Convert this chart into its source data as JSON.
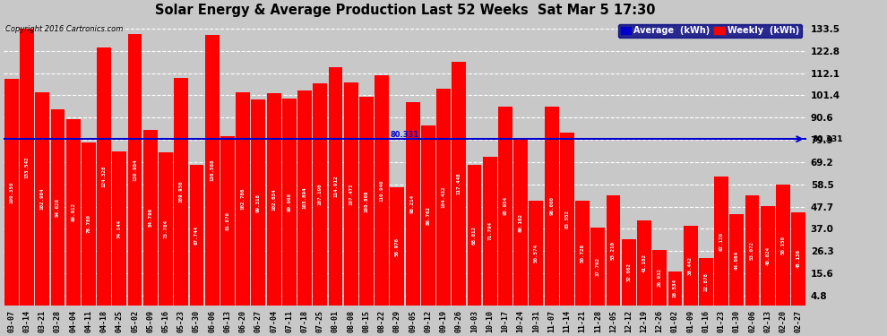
{
  "title": "Solar Energy & Average Production Last 52 Weeks  Sat Mar 5 17:30",
  "copyright": "Copyright 2016 Cartronics.com",
  "average_value": 80.331,
  "bar_color": "#ff0000",
  "average_line_color": "#0000cc",
  "background_color": "#c8c8c8",
  "plot_bg_color": "#c8c8c8",
  "grid_color": "#ffffff",
  "ytick_vals": [
    133.5,
    122.8,
    112.1,
    101.4,
    90.6,
    79.9,
    69.2,
    58.5,
    47.7,
    37.0,
    26.3,
    15.6,
    4.8
  ],
  "ymax": 138.0,
  "ymin": 0.0,
  "legend_avg_color": "#0000cc",
  "legend_weekly_color": "#ff0000",
  "categories": [
    "03-07",
    "03-14",
    "03-21",
    "03-28",
    "04-04",
    "04-11",
    "04-18",
    "04-25",
    "05-02",
    "05-09",
    "05-16",
    "05-23",
    "05-30",
    "06-06",
    "06-13",
    "06-20",
    "06-27",
    "07-04",
    "07-11",
    "07-18",
    "07-25",
    "08-01",
    "08-08",
    "08-15",
    "08-22",
    "08-29",
    "09-05",
    "09-12",
    "09-19",
    "09-26",
    "10-03",
    "10-10",
    "10-17",
    "10-24",
    "10-31",
    "11-07",
    "11-14",
    "11-21",
    "11-28",
    "12-05",
    "12-12",
    "12-19",
    "12-26",
    "01-02",
    "01-09",
    "01-16",
    "01-23",
    "01-30",
    "02-06",
    "02-13",
    "02-20",
    "02-27"
  ],
  "values": [
    109.35,
    133.542,
    102.904,
    94.628,
    89.912,
    78.78,
    124.328,
    74.144,
    130.904,
    84.796,
    73.784,
    109.936,
    67.744,
    130.588,
    81.878,
    102.786,
    99.318,
    102.634,
    99.968,
    103.894,
    107.19,
    114.912,
    107.472,
    100.808,
    110.94,
    56.976,
    98.214,
    86.762,
    104.432,
    117.448,
    68.012,
    71.794,
    95.954,
    80.102,
    50.574,
    96.0,
    83.552,
    50.728,
    37.792,
    53.21,
    32.062,
    41.102,
    26.932,
    16.534,
    38.442,
    22.878,
    62.12,
    44.064,
    53.072,
    48.024,
    58.15,
    45.136
  ]
}
